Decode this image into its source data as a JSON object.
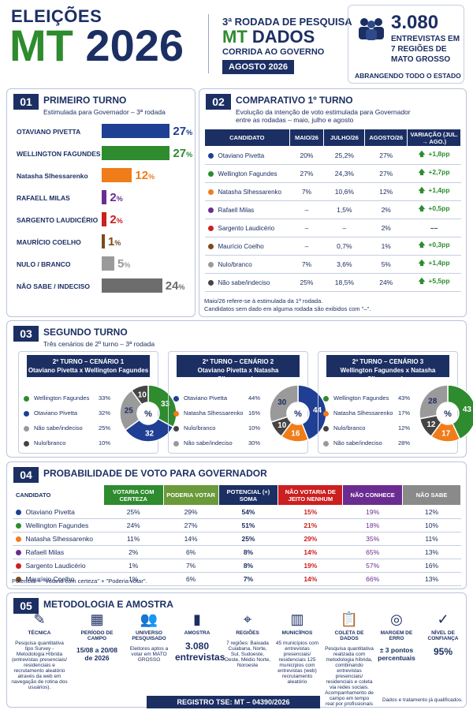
{
  "header": {
    "title_line1": "ELEIÇÕES",
    "title_mt": "MT",
    "title_year": "2026",
    "round_line": "3ª RODADA DE PESQUISA",
    "brand_mt": "MT",
    "brand_dados": "DADOS",
    "race": "CORRIDA AO GOVERNO",
    "date_badge": "AGOSTO 2026",
    "interviews_count": "3.080",
    "interviews_label": "ENTREVISTAS EM 7 REGIÕES DE MATO GROSSO",
    "coverage": "ABRANGENDO TODO O ESTADO"
  },
  "s1": {
    "num": "01",
    "title": "PRIMEIRO TURNO",
    "subtitle": "Estimulada para Governador – 3ª rodada",
    "pct_suffix": "%",
    "rows": [
      {
        "name": "OTAVIANO PIVETTA",
        "value": 27,
        "color": "#1f3f94"
      },
      {
        "name": "WELLINGTON FAGUNDES",
        "value": 27,
        "color": "#2e8b2e"
      },
      {
        "name": "Natasha Slhessarenko",
        "value": 12,
        "color": "#f07c1a"
      },
      {
        "name": "RAFAELL MILAS",
        "value": 2,
        "color": "#6b2c91"
      },
      {
        "name": "SARGENTO LAUDICÉRIO",
        "value": 2,
        "color": "#cc1f1f"
      },
      {
        "name": "MAURÍCIO COELHO",
        "value": 1,
        "color": "#7a4b1f"
      },
      {
        "name": "NULO / BRANCO",
        "value": 5,
        "color": "#9a9a9a"
      },
      {
        "name": "NÃO SABE / INDECISO",
        "value": 24,
        "color": "#6d6d6d"
      }
    ]
  },
  "s2": {
    "num": "02",
    "title": "COMPARATIVO 1º TURNO",
    "subtitle1": "Evolução da intenção de voto estimulada para Governador",
    "subtitle2": "entre as rodadas – maio, julho e agosto",
    "headers": [
      "CANDIDATO",
      "MAIO/26",
      "JULHO/26",
      "AGOSTO/26",
      "VARIAÇÃO (JUL. → AGO.)"
    ],
    "rows": [
      {
        "name": "Otaviano Pivetta",
        "color": "#1f3f94",
        "maio": "20%",
        "julho": "25,2%",
        "agosto": "27%",
        "var": "+1,8pp",
        "up": true
      },
      {
        "name": "Wellington Fagundes",
        "color": "#2e8b2e",
        "maio": "27%",
        "julho": "24,3%",
        "agosto": "27%",
        "var": "+2,7pp",
        "up": true
      },
      {
        "name": "Natasha Slhessarenko",
        "color": "#f07c1a",
        "maio": "7%",
        "julho": "10,6%",
        "agosto": "12%",
        "var": "+1,4pp",
        "up": true
      },
      {
        "name": "Rafaell Milas",
        "color": "#6b2c91",
        "maio": "–",
        "julho": "1,5%",
        "agosto": "2%",
        "var": "+0,5pp",
        "up": true
      },
      {
        "name": "Sargento Laudicério",
        "color": "#cc1f1f",
        "maio": "–",
        "julho": "–",
        "agosto": "2%",
        "var": "––",
        "up": false
      },
      {
        "name": "Maurício Coelho",
        "color": "#7a4b1f",
        "maio": "–",
        "julho": "0,7%",
        "agosto": "1%",
        "var": "+0,3pp",
        "up": true
      },
      {
        "name": "Nulo/branco",
        "color": "#9a9a9a",
        "maio": "7%",
        "julho": "3,6%",
        "agosto": "5%",
        "var": "+1,4pp",
        "up": true
      },
      {
        "name": "Não sabe/indeciso",
        "color": "#444444",
        "maio": "25%",
        "julho": "18,5%",
        "agosto": "24%",
        "var": "+5,5pp",
        "up": true
      }
    ],
    "note1": "Maio/26 refere-se à estimulada da 1ª rodada.",
    "note2": "Candidatos sem dado em alguma rodada são exibidos com \"–\"."
  },
  "s3": {
    "num": "03",
    "title": "SEGUNDO TURNO",
    "subtitle": "Três cenários de 2º turno – 3ª rodada",
    "center_label": "%",
    "scenarios": [
      {
        "title1": "2º TURNO – CENÁRIO 1",
        "title2": "Otaviano Pivetta x Wellington Fagundes",
        "items": [
          {
            "name": "Wellington Fagundes",
            "value": 33,
            "color": "#2e8b2e"
          },
          {
            "name": "Otaviano Pivetta",
            "value": 32,
            "color": "#1f3f94"
          },
          {
            "name": "Não sabe/indeciso",
            "value": 25,
            "color": "#9a9a9a"
          },
          {
            "name": "Nulo/branco",
            "value": 10,
            "color": "#444444"
          }
        ]
      },
      {
        "title1": "2º TURNO – CENÁRIO 2",
        "title2": "Otaviano Pivetta x Natasha Slhessarenko",
        "items": [
          {
            "name": "Otaviano Pivetta",
            "value": 44,
            "color": "#1f3f94"
          },
          {
            "name": "Natasha Slhessarenko",
            "value": 16,
            "color": "#f07c1a"
          },
          {
            "name": "Nulo/branco",
            "value": 10,
            "color": "#444444"
          },
          {
            "name": "Não sabe/indeciso",
            "value": 30,
            "color": "#9a9a9a"
          }
        ]
      },
      {
        "title1": "2º TURNO – CENÁRIO 3",
        "title2": "Wellington Fagundes x Natasha Slhessarenko",
        "items": [
          {
            "name": "Wellington Fagundes",
            "value": 43,
            "color": "#2e8b2e"
          },
          {
            "name": "Natasha Slhessarenko",
            "value": 17,
            "color": "#f07c1a"
          },
          {
            "name": "Nulo/branco",
            "value": 12,
            "color": "#444444"
          },
          {
            "name": "Não sabe/indeciso",
            "value": 28,
            "color": "#9a9a9a"
          }
        ]
      }
    ]
  },
  "s4": {
    "num": "04",
    "title": "PROBABILIDADE DE VOTO PARA GOVERNADOR",
    "headers": [
      {
        "label": "CANDIDATO",
        "color": "#ffffff"
      },
      {
        "label": "VOTARIA COM CERTEZA",
        "color": "#2e8b2e"
      },
      {
        "label": "PODERIA VOTAR",
        "color": "#6a9a3a"
      },
      {
        "label": "POTENCIAL (+) SOMA",
        "color": "#1c2f63"
      },
      {
        "label": "NÃO VOTARIA DE JEITO NENHUM",
        "color": "#cc1f1f"
      },
      {
        "label": "NÃO CONHECE",
        "color": "#6b2c91"
      },
      {
        "label": "NÃO SABE",
        "color": "#8a8a8a"
      }
    ],
    "rows": [
      {
        "name": "Otaviano Pivetta",
        "color": "#1f3f94",
        "vals": [
          "25%",
          "29%",
          "54%",
          "15%",
          "19%",
          "12%"
        ]
      },
      {
        "name": "Wellington Fagundes",
        "color": "#2e8b2e",
        "vals": [
          "24%",
          "27%",
          "51%",
          "21%",
          "18%",
          "10%"
        ]
      },
      {
        "name": "Natasha Slhessarenko",
        "color": "#f07c1a",
        "vals": [
          "11%",
          "14%",
          "25%",
          "29%",
          "35%",
          "11%"
        ]
      },
      {
        "name": "Rafaell Milas",
        "color": "#6b2c91",
        "vals": [
          "2%",
          "6%",
          "8%",
          "14%",
          "65%",
          "13%"
        ]
      },
      {
        "name": "Sargento Laudicério",
        "color": "#cc1f1f",
        "vals": [
          "1%",
          "7%",
          "8%",
          "19%",
          "57%",
          "16%"
        ]
      },
      {
        "name": "Maurício Coelho",
        "color": "#7a4b1f",
        "vals": [
          "1%",
          "6%",
          "7%",
          "14%",
          "66%",
          "13%"
        ]
      }
    ],
    "note": "Potencial = \"Votaria com certeza\" + \"Poderia votar\"."
  },
  "s5": {
    "num": "05",
    "title": "METODOLOGIA E AMOSTRA",
    "items": [
      {
        "title": "TÉCNICA",
        "text": "Pesquisa quantitativa tipo Survey - Metodologia Híbrida (entrevistas presenciais/ residenciais e recrutamento aleatório através da web em navegação de rotina dos usuários).",
        "icon": "✎"
      },
      {
        "title": "PERÍODO DE CAMPO",
        "text": "15/08 a 20/08 de 2026",
        "icon": "▦"
      },
      {
        "title": "UNIVERSO PESQUISADO",
        "text": "Eleitores aptos a votar em MATO GROSSO",
        "icon": "👥"
      },
      {
        "title": "AMOSTRA",
        "text": "3.080 entrevistas",
        "icon": "▮"
      },
      {
        "title": "REGIÕES",
        "text": "7 regiões: Baixada Cuiabana, Norte, Sul, Sudoeste, Oeste, Médio Norte, Noroeste",
        "icon": "⌖"
      },
      {
        "title": "MUNICÍPIOS",
        "text": "45 municípios com entrevistas presenciais/ residenciais 125 municípios com entrevistas (web) recrutamento aleatório",
        "icon": "▥"
      },
      {
        "title": "COLETA DE DADOS",
        "text": "Pesquisa quantitativa realizada com metodologia híbrida, combinando entrevistas presenciais/ residenciais e coleta via redes sociais. Acompanhamento de campo em tempo real por profissionais",
        "icon": "📋"
      },
      {
        "title": "MARGEM DE ERRO",
        "text": "± 3 pontos percentuais",
        "icon": "◎"
      },
      {
        "title": "NÍVEL DE CONFIANÇA",
        "text": "95%",
        "icon": "✓"
      }
    ],
    "footer_note": "Dados e tratamento já qualificados.",
    "registration": "REGISTRO TSE: MT – 04390/2026"
  }
}
